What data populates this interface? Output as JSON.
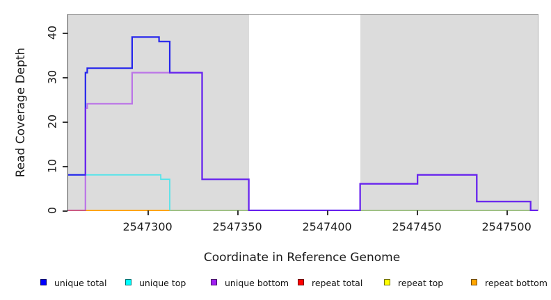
{
  "figure": {
    "title": "",
    "background_color": "#FFFFFF",
    "plot_background_color": "#DCDCDC",
    "masked_band_color": "#FFFFFF"
  },
  "chart_data": {
    "type": "line",
    "subtype": "step-post-coverage",
    "title": "",
    "xlabel": "Coordinate in Reference Genome",
    "ylabel": "Read Coverage Depth",
    "xlim": [
      2547255,
      2547517
    ],
    "ylim": [
      0,
      44
    ],
    "x_ticks": [
      2547300,
      2547350,
      2547400,
      2547450,
      2547500
    ],
    "y_ticks": [
      0,
      10,
      20,
      30,
      40
    ],
    "grid": false,
    "legend_position": "bottom",
    "masked_region": {
      "x0": 2547356,
      "x1": 2547418,
      "color": "#FFFFFF"
    },
    "series": [
      {
        "name": "unique total",
        "color": "#2626EC",
        "points": [
          [
            2547255,
            8
          ],
          [
            2547265,
            31
          ],
          [
            2547266,
            32
          ],
          [
            2547291,
            39
          ],
          [
            2547306,
            38
          ],
          [
            2547312,
            31
          ],
          [
            2547330,
            7
          ],
          [
            2547356,
            0
          ],
          [
            2547418,
            6
          ],
          [
            2547450,
            8
          ],
          [
            2547483,
            2
          ],
          [
            2547513,
            0
          ],
          [
            2547517,
            0
          ]
        ]
      },
      {
        "name": "unique top",
        "color": "#55E4EA",
        "points": [
          [
            2547255,
            8
          ],
          [
            2547307,
            7
          ],
          [
            2547312,
            0
          ]
        ]
      },
      {
        "name": "unique bottom",
        "color": "#A020F0",
        "points": [
          [
            2547255,
            0
          ],
          [
            2547265,
            23
          ],
          [
            2547266,
            24
          ],
          [
            2547291,
            31
          ],
          [
            2547312,
            31
          ],
          [
            2547330,
            7
          ],
          [
            2547356,
            0
          ],
          [
            2547418,
            6
          ],
          [
            2547450,
            8
          ],
          [
            2547483,
            2
          ],
          [
            2547513,
            0
          ],
          [
            2547517,
            0
          ]
        ]
      },
      {
        "name": "repeat total",
        "color": "#EE2222",
        "points": [
          [
            2547255,
            0
          ],
          [
            2547517,
            0
          ]
        ]
      },
      {
        "name": "repeat top",
        "color": "#FFFF00",
        "points": [
          [
            2547255,
            0
          ],
          [
            2547517,
            0
          ]
        ]
      },
      {
        "name": "repeat bottom",
        "color": "#FFA500",
        "points": [
          [
            2547255,
            0
          ],
          [
            2547312,
            0
          ]
        ]
      },
      {
        "name": "zero baseline",
        "color": "#94D894",
        "points": [
          [
            2547312,
            0
          ],
          [
            2547517,
            0
          ]
        ]
      }
    ]
  },
  "legend": {
    "items": [
      {
        "label": "unique total",
        "color": "#0000FF"
      },
      {
        "label": "unique top",
        "color": "#00FFFF"
      },
      {
        "label": "unique bottom",
        "color": "#A020F0"
      },
      {
        "label": "repeat total",
        "color": "#FF0000"
      },
      {
        "label": "repeat top",
        "color": "#FFFF00"
      },
      {
        "label": "repeat bottom",
        "color": "#FFA500"
      }
    ]
  }
}
